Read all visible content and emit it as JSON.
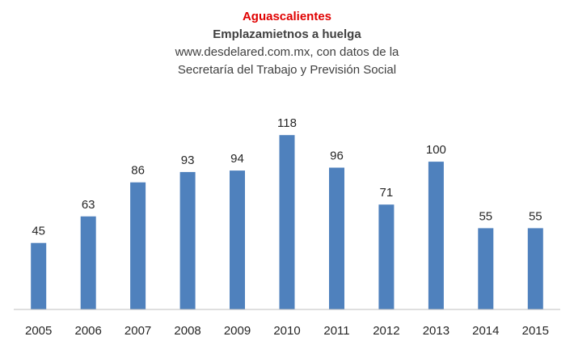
{
  "chart_data": {
    "type": "bar",
    "title": "Aguascalientes",
    "subtitle": "Emplazamietnos a huelga",
    "source_lines": [
      "www.desdelared.com.mx, con datos de la",
      "Secretaría del Trabajo y Previsión Social"
    ],
    "categories": [
      "2005",
      "2006",
      "2007",
      "2008",
      "2009",
      "2010",
      "2011",
      "2012",
      "2013",
      "2014",
      "2015"
    ],
    "values": [
      45,
      63,
      86,
      93,
      94,
      118,
      96,
      71,
      100,
      55,
      55
    ],
    "xlabel": "",
    "ylabel": "",
    "ylim": [
      0,
      140
    ],
    "grid": false,
    "legend": "none",
    "data_labels": true,
    "colors": {
      "bar": "#4f81bd",
      "title": "#e00000",
      "text": "#404040",
      "axis": "#bfbfbf"
    }
  }
}
